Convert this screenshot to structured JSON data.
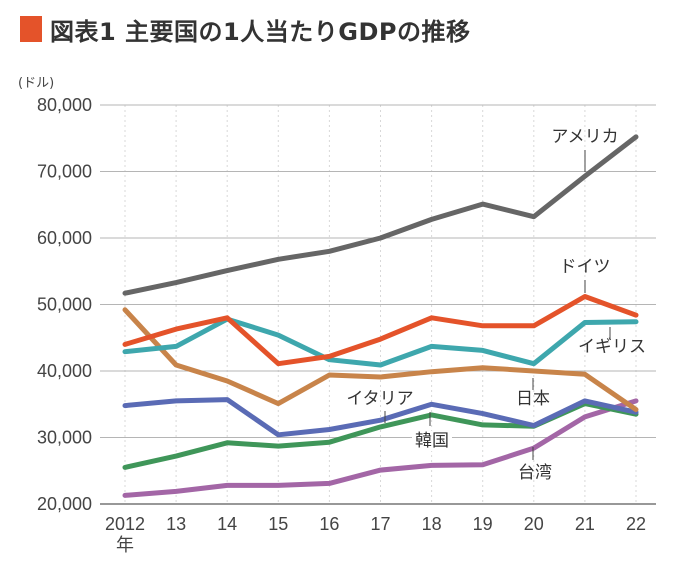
{
  "header": {
    "title": "図表1 主要国の1人当たりGDPの推移",
    "accent_color": "#e4532a"
  },
  "chart_data": {
    "type": "line",
    "title": "図表1 主要国の1人当たりGDPの推移",
    "ylabel": "(ドル)",
    "xlabel": "",
    "ylim": [
      20000,
      80000
    ],
    "yticks": [
      20000,
      30000,
      40000,
      50000,
      60000,
      70000,
      80000
    ],
    "ytick_labels": [
      "20,000",
      "30,000",
      "40,000",
      "50,000",
      "60,000",
      "70,000",
      "80,000"
    ],
    "x": [
      2012,
      2013,
      2014,
      2015,
      2016,
      2017,
      2018,
      2019,
      2020,
      2021,
      2022
    ],
    "xtick_labels": [
      "2012",
      "13",
      "14",
      "15",
      "16",
      "17",
      "18",
      "19",
      "20",
      "21",
      "22"
    ],
    "xtick_first_suffix": "年",
    "grid": true,
    "legend": "inline-labels",
    "series": [
      {
        "name": "アメリカ",
        "color": "#666666",
        "values": [
          51700,
          53300,
          55100,
          56800,
          58000,
          60000,
          62800,
          65100,
          63200,
          69300,
          75200
        ]
      },
      {
        "name": "ドイツ",
        "color": "#e4532a",
        "values": [
          44000,
          46300,
          48000,
          41100,
          42200,
          44800,
          48000,
          46800,
          46800,
          51200,
          48400
        ]
      },
      {
        "name": "イギリス",
        "color": "#3ea7ad",
        "values": [
          42900,
          43700,
          47800,
          45400,
          41700,
          40900,
          43700,
          43100,
          41100,
          47300,
          47400
        ]
      },
      {
        "name": "日本",
        "color": "#c8844a",
        "values": [
          49200,
          40900,
          38500,
          35100,
          39400,
          39100,
          39900,
          40500,
          40000,
          39500,
          34200
        ]
      },
      {
        "name": "イタリア",
        "color": "#5a6bb5",
        "values": [
          34800,
          35500,
          35700,
          30400,
          31200,
          32600,
          35000,
          33600,
          31800,
          35500,
          33800
        ]
      },
      {
        "name": "韓国",
        "color": "#3f9659",
        "values": [
          25500,
          27200,
          29200,
          28700,
          29300,
          31600,
          33400,
          31900,
          31700,
          35100,
          33500
        ]
      },
      {
        "name": "台湾",
        "color": "#a366a6",
        "values": [
          21300,
          21900,
          22800,
          22800,
          23100,
          25100,
          25800,
          25900,
          28400,
          33100,
          35500
        ]
      }
    ]
  }
}
